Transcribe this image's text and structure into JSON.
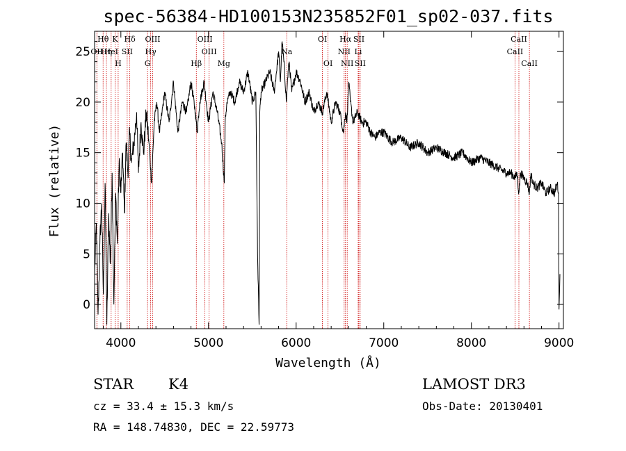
{
  "chart_data": {
    "type": "line",
    "title": "spec-56384-HD100153N235852F01_sp02-037.fits",
    "xlabel": "Wavelength (Å)",
    "ylabel": "Flux (relative)",
    "xlim": [
      3700,
      9050
    ],
    "ylim": [
      -2.4,
      27
    ],
    "xticks": [
      4000,
      5000,
      6000,
      7000,
      8000,
      9000
    ],
    "yticks": [
      0,
      5,
      10,
      15,
      20,
      25
    ],
    "xtick_labels": [
      "4000",
      "5000",
      "6000",
      "7000",
      "8000",
      "9000"
    ],
    "ytick_labels": [
      "0",
      "5",
      "10",
      "15",
      "20",
      "25"
    ],
    "grid": false,
    "series": [
      {
        "x": [
          3700,
          3720,
          3740,
          3760,
          3780,
          3800,
          3820,
          3840,
          3860,
          3880,
          3900,
          3920,
          3940,
          3960,
          3980,
          4000,
          4020,
          4040,
          4060,
          4080,
          4100,
          4120,
          4150,
          4180,
          4200,
          4230,
          4260,
          4290,
          4320,
          4350,
          4380,
          4410,
          4440,
          4470,
          4500,
          4550,
          4600,
          4650,
          4700,
          4750,
          4800,
          4850,
          4870,
          4900,
          4950,
          5000,
          5050,
          5100,
          5150,
          5180,
          5190,
          5200,
          5210,
          5250,
          5300,
          5350,
          5400,
          5450,
          5500,
          5540,
          5560,
          5577,
          5585,
          5600,
          5650,
          5700,
          5750,
          5800,
          5820,
          5840,
          5860,
          5890,
          5900,
          5920,
          5950,
          6000,
          6050,
          6100,
          6150,
          6200,
          6250,
          6300,
          6350,
          6400,
          6450,
          6500,
          6520,
          6540,
          6563,
          6580,
          6600,
          6620,
          6650,
          6700,
          6750,
          6800,
          6850,
          6900,
          6950,
          7000,
          7100,
          7200,
          7300,
          7400,
          7500,
          7600,
          7700,
          7800,
          7900,
          8000,
          8100,
          8200,
          8300,
          8400,
          8450,
          8500,
          8520,
          8542,
          8560,
          8600,
          8640,
          8662,
          8680,
          8700,
          8750,
          8800,
          8850,
          8900,
          8950,
          8980,
          8995,
          9000,
          9010
        ],
        "y": [
          3,
          8,
          -1,
          6,
          10,
          1,
          12,
          -2,
          9,
          4,
          13,
          0,
          11,
          6,
          14,
          11,
          15,
          9,
          16,
          13,
          17,
          14,
          16,
          19,
          13,
          18,
          15,
          19,
          16,
          12,
          18,
          20,
          17,
          19,
          21,
          18,
          22,
          17,
          20,
          19,
          22,
          19,
          17,
          20,
          22,
          18,
          21,
          19,
          16,
          12,
          18,
          19,
          20,
          21,
          20,
          22,
          21,
          23,
          20,
          21,
          5,
          -2,
          19,
          21,
          22,
          23,
          21,
          25,
          22,
          26,
          24,
          20,
          22,
          24,
          21,
          23,
          22,
          20,
          21,
          19,
          20,
          19,
          21,
          18,
          20,
          19,
          18,
          17,
          19,
          18,
          22,
          20,
          18,
          19,
          18,
          18,
          17,
          16.5,
          17,
          17,
          16,
          16.5,
          15.5,
          16,
          15,
          15.5,
          15,
          14.5,
          15,
          14,
          14.5,
          14,
          13.5,
          13,
          13,
          12.5,
          13,
          11,
          13,
          12.5,
          12,
          11,
          13,
          12,
          11.5,
          12,
          11,
          11.5,
          11,
          12,
          11,
          -0.5,
          3
        ]
      }
    ],
    "line_markers": [
      {
        "wavelength": 3726,
        "label": "OII",
        "row": 2
      },
      {
        "wavelength": 3797,
        "label": "Hθ",
        "row": 1
      },
      {
        "wavelength": 3835,
        "label": "Hη",
        "row": 2
      },
      {
        "wavelength": 3889,
        "label": "HeI",
        "row": 2
      },
      {
        "wavelength": 3934,
        "label": "K",
        "row": 1
      },
      {
        "wavelength": 3969,
        "label": "H",
        "row": 3
      },
      {
        "wavelength": 4072,
        "label": "SII",
        "row": 2
      },
      {
        "wavelength": 4102,
        "label": "Hδ",
        "row": 1
      },
      {
        "wavelength": 4304,
        "label": "G",
        "row": 3
      },
      {
        "wavelength": 4340,
        "label": "Hγ",
        "row": 2
      },
      {
        "wavelength": 4363,
        "label": "OIII",
        "row": 1
      },
      {
        "wavelength": 4861,
        "label": "Hβ",
        "row": 3
      },
      {
        "wavelength": 4959,
        "label": "OIII",
        "row": 1
      },
      {
        "wavelength": 5007,
        "label": "OIII",
        "row": 2
      },
      {
        "wavelength": 5175,
        "label": "Mg",
        "row": 3
      },
      {
        "wavelength": 5893,
        "label": "Na",
        "row": 2
      },
      {
        "wavelength": 6300,
        "label": "OI",
        "row": 1
      },
      {
        "wavelength": 6364,
        "label": "OI",
        "row": 3
      },
      {
        "wavelength": 6548,
        "label": "NII",
        "row": 2
      },
      {
        "wavelength": 6563,
        "label": "Hα",
        "row": 1
      },
      {
        "wavelength": 6583,
        "label": "NII",
        "row": 3
      },
      {
        "wavelength": 6708,
        "label": "Li",
        "row": 2
      },
      {
        "wavelength": 6716,
        "label": "SII",
        "row": 1
      },
      {
        "wavelength": 6731,
        "label": "SII",
        "row": 3
      },
      {
        "wavelength": 8498,
        "label": "CaII",
        "row": 2
      },
      {
        "wavelength": 8542,
        "label": "CaII",
        "row": 1
      },
      {
        "wavelength": 8662,
        "label": "CaII",
        "row": 3
      }
    ]
  },
  "info": {
    "object_class": "STAR",
    "subclass": "K4",
    "survey": "LAMOST DR3",
    "cz": "cz = 33.4 ± 15.3 km/s",
    "obs_date": "Obs-Date: 20130401",
    "coords": "RA = 148.74830, DEC =  22.59773"
  },
  "colors": {
    "spectrum": "#000000",
    "marker_lines": "#cc0000",
    "frame": "#000000"
  }
}
